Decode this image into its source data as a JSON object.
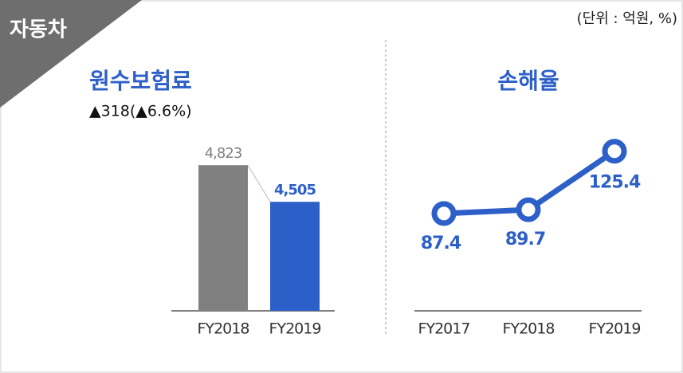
{
  "header": {
    "tag": "자동차",
    "unit": "(단위 : 억원, %)"
  },
  "chart_data": [
    {
      "type": "bar",
      "title": "원수보험료",
      "subtitle": "▲318(▲6.6%)",
      "categories": [
        "FY2018",
        "FY2019"
      ],
      "values": [
        4823,
        4505
      ],
      "value_labels": [
        "4,823",
        "4,505"
      ],
      "colors": [
        "#808080",
        "#2d5fc8"
      ],
      "ylim": [
        3560,
        5080
      ]
    },
    {
      "type": "line",
      "title": "손해율",
      "categories": [
        "FY2017",
        "FY2018",
        "FY2019"
      ],
      "values": [
        87.4,
        89.7,
        125.4
      ],
      "color": "#2d5fc8",
      "ylim": [
        28,
        135
      ]
    }
  ]
}
